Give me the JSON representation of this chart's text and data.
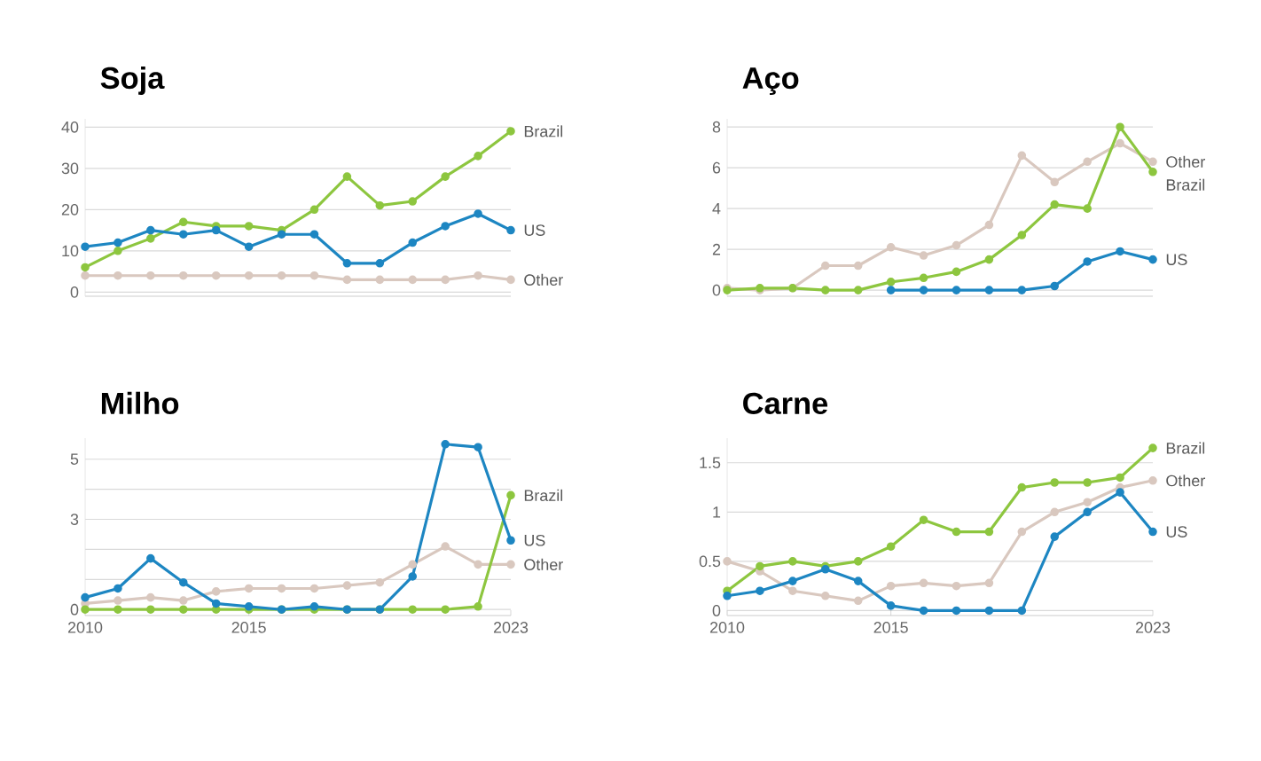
{
  "chart_data": [
    {
      "type": "line",
      "title": "Soja",
      "x": [
        2010,
        2011,
        2012,
        2013,
        2014,
        2015,
        2016,
        2017,
        2018,
        2019,
        2020,
        2021,
        2022,
        2023
      ],
      "xlim": [
        2010,
        2023
      ],
      "xticks": [
        2010,
        2015,
        2023
      ],
      "ylim": [
        -1,
        42
      ],
      "yticks": [
        0,
        10,
        20,
        30,
        40
      ],
      "tick_labels": "y",
      "grid": "y",
      "legend": false,
      "marker": "circle",
      "line_style": "solid",
      "series": [
        {
          "name": "Other",
          "color": "#d9c8bf",
          "values": [
            4,
            4,
            4,
            4,
            4,
            4,
            4,
            4,
            3,
            3,
            3,
            3,
            4,
            3
          ]
        },
        {
          "name": "Brazil",
          "color": "#8dc63f",
          "values": [
            6,
            10,
            13,
            17,
            16,
            16,
            15,
            20,
            28,
            21,
            22,
            28,
            33,
            39
          ]
        },
        {
          "name": "US",
          "color": "#1d86c2",
          "values": [
            11,
            12,
            15,
            14,
            15,
            11,
            14,
            14,
            7,
            7,
            12,
            16,
            19,
            15
          ]
        }
      ]
    },
    {
      "type": "line",
      "title": "Aço",
      "x": [
        2010,
        2011,
        2012,
        2013,
        2014,
        2015,
        2016,
        2017,
        2018,
        2019,
        2020,
        2021,
        2022,
        2023
      ],
      "xlim": [
        2010,
        2023
      ],
      "xticks": [
        2010,
        2015,
        2023
      ],
      "ylim": [
        -0.3,
        8.4
      ],
      "yticks": [
        0,
        2,
        4,
        6,
        8
      ],
      "tick_labels": "y",
      "grid": "y",
      "legend": false,
      "marker": "circle",
      "line_style": "solid",
      "series": [
        {
          "name": "Other",
          "color": "#d9c8bf",
          "values": [
            0.1,
            0,
            0.1,
            1.2,
            1.2,
            2.1,
            1.7,
            2.2,
            3.2,
            6.6,
            5.3,
            6.3,
            7.2,
            6.3
          ]
        },
        {
          "name": "Brazil",
          "color": "#8dc63f",
          "values": [
            0,
            0.1,
            0.1,
            0,
            0,
            0.4,
            0.6,
            0.9,
            1.5,
            2.7,
            4.2,
            4.0,
            8.0,
            5.8
          ]
        },
        {
          "name": "US",
          "color": "#1d86c2",
          "values": [
            null,
            null,
            null,
            null,
            null,
            0,
            0,
            0,
            0,
            0,
            0.2,
            1.4,
            1.9,
            1.5
          ]
        }
      ]
    },
    {
      "type": "line",
      "title": "Milho",
      "x": [
        2010,
        2011,
        2012,
        2013,
        2014,
        2015,
        2016,
        2017,
        2018,
        2019,
        2020,
        2021,
        2022,
        2023
      ],
      "xlim": [
        2010,
        2023
      ],
      "xticks": [
        2010,
        2015,
        2023
      ],
      "ylim": [
        -0.2,
        5.7
      ],
      "yticks": [
        0,
        {
          "value": 1,
          "label": null
        },
        {
          "value": 2,
          "label": null
        },
        3,
        {
          "value": 4,
          "label": null
        },
        5
      ],
      "grid": "y",
      "legend": false,
      "marker": "circle",
      "line_style": "solid",
      "series": [
        {
          "name": "Other",
          "color": "#d9c8bf",
          "values": [
            0.2,
            0.3,
            0.4,
            0.3,
            0.6,
            0.7,
            0.7,
            0.7,
            0.8,
            0.9,
            1.5,
            2.1,
            1.5,
            1.5
          ]
        },
        {
          "name": "Brazil",
          "color": "#8dc63f",
          "values": [
            0,
            0,
            0,
            0,
            0,
            0,
            0,
            0,
            0,
            0,
            0,
            0,
            0.1,
            3.8
          ]
        },
        {
          "name": "US",
          "color": "#1d86c2",
          "values": [
            0.4,
            0.7,
            1.7,
            0.9,
            0.2,
            0.1,
            0,
            0.1,
            0,
            0,
            1.1,
            5.5,
            5.4,
            2.3
          ]
        }
      ]
    },
    {
      "type": "line",
      "title": "Carne",
      "x": [
        2010,
        2011,
        2012,
        2013,
        2014,
        2015,
        2016,
        2017,
        2018,
        2019,
        2020,
        2021,
        2022,
        2023
      ],
      "xlim": [
        2010,
        2023
      ],
      "xticks": [
        2010,
        2015,
        2023
      ],
      "ylim": [
        -0.05,
        1.75
      ],
      "yticks": [
        0,
        0.5,
        1,
        1.5
      ],
      "grid": "y",
      "legend": false,
      "marker": "circle",
      "line_style": "solid",
      "series": [
        {
          "name": "Other",
          "color": "#d9c8bf",
          "values": [
            0.5,
            0.4,
            0.2,
            0.15,
            0.1,
            0.25,
            0.28,
            0.25,
            0.28,
            0.8,
            1.0,
            1.1,
            1.25,
            1.32
          ]
        },
        {
          "name": "Brazil",
          "color": "#8dc63f",
          "values": [
            0.2,
            0.45,
            0.5,
            0.45,
            0.5,
            0.65,
            0.92,
            0.8,
            0.8,
            1.25,
            1.3,
            1.3,
            1.35,
            1.65
          ]
        },
        {
          "name": "US",
          "color": "#1d86c2",
          "values": [
            0.15,
            0.2,
            0.3,
            0.42,
            0.3,
            0.05,
            0,
            0,
            0,
            0,
            0.75,
            1.0,
            1.2,
            0.8
          ]
        }
      ]
    }
  ]
}
